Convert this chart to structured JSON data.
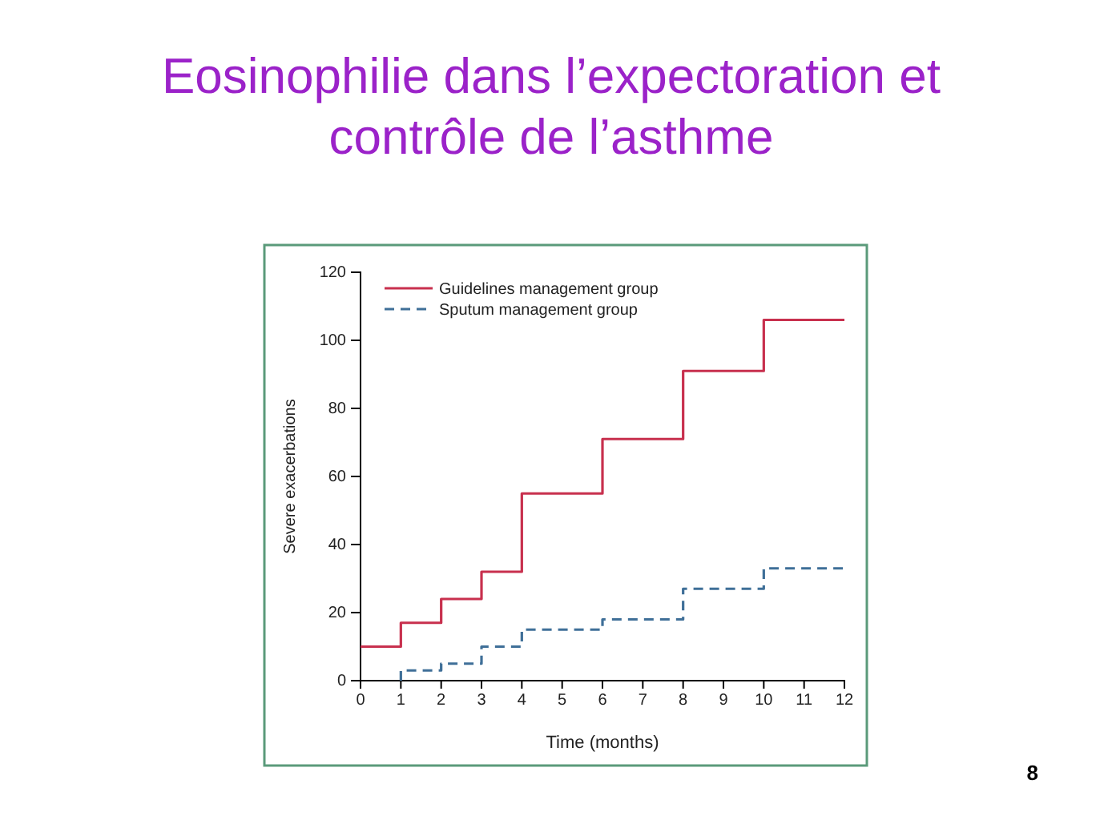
{
  "chart_data": {
    "type": "step",
    "title": "Eosinophilie dans l’expectoration et contrôle de l’asthme",
    "xlabel": "Time (months)",
    "ylabel": "Severe exacerbations",
    "xlim": [
      0,
      12
    ],
    "xticks": [
      0,
      1,
      2,
      3,
      4,
      5,
      6,
      7,
      8,
      9,
      10,
      11,
      12
    ],
    "ylim": [
      0,
      120
    ],
    "yticks": [
      0,
      20,
      40,
      60,
      80,
      100,
      120
    ],
    "series": [
      {
        "name": "Guidelines management group",
        "color": "#c8304e",
        "line_style": "solid",
        "x": [
          0,
          1,
          2,
          3,
          4,
          6,
          8,
          10,
          12
        ],
        "values": [
          10,
          17,
          24,
          32,
          55,
          71,
          91,
          106,
          106
        ]
      },
      {
        "name": "Sputum management group",
        "color": "#3f6f98",
        "line_style": "dashed",
        "x": [
          1,
          1,
          2,
          3,
          4,
          6,
          8,
          10,
          12
        ],
        "values": [
          0,
          3,
          5,
          10,
          15,
          18,
          27,
          33,
          33
        ]
      }
    ],
    "legend": "top left",
    "grid": false,
    "annotations": [
      "8"
    ]
  }
}
